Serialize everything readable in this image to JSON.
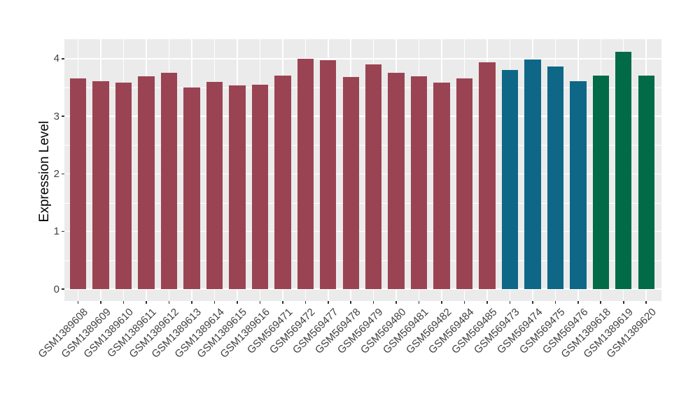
{
  "chart_data": {
    "type": "bar",
    "title": "",
    "xlabel": "",
    "ylabel": "Expression Level",
    "ylim": [
      0,
      4.33
    ],
    "yticks": [
      "0",
      "1",
      "2",
      "3",
      "4"
    ],
    "grid": true,
    "legend_position": "none",
    "panel_background": "#EBEBEB",
    "grid_color": "#FFFFFF",
    "outer_background": "#FFFFFF",
    "tick_color": "#333333",
    "axis_text_color": "#404040",
    "axis_title_color": "#000000",
    "palette": {
      "group1": "#9A4453",
      "group2": "#0E6787",
      "group3": "#006B46"
    },
    "bars": [
      {
        "label": "GSM1389608",
        "value": 3.66,
        "color": "#9A4453"
      },
      {
        "label": "GSM1389609",
        "value": 3.61,
        "color": "#9A4453"
      },
      {
        "label": "GSM1389610",
        "value": 3.59,
        "color": "#9A4453"
      },
      {
        "label": "GSM1389611",
        "value": 3.69,
        "color": "#9A4453"
      },
      {
        "label": "GSM1389612",
        "value": 3.75,
        "color": "#9A4453"
      },
      {
        "label": "GSM1389613",
        "value": 3.5,
        "color": "#9A4453"
      },
      {
        "label": "GSM1389614",
        "value": 3.6,
        "color": "#9A4453"
      },
      {
        "label": "GSM1389615",
        "value": 3.54,
        "color": "#9A4453"
      },
      {
        "label": "GSM1389616",
        "value": 3.55,
        "color": "#9A4453"
      },
      {
        "label": "GSM569471",
        "value": 3.7,
        "color": "#9A4453"
      },
      {
        "label": "GSM569472",
        "value": 4.0,
        "color": "#9A4453"
      },
      {
        "label": "GSM569477",
        "value": 3.97,
        "color": "#9A4453"
      },
      {
        "label": "GSM569478",
        "value": 3.68,
        "color": "#9A4453"
      },
      {
        "label": "GSM569479",
        "value": 3.9,
        "color": "#9A4453"
      },
      {
        "label": "GSM569480",
        "value": 3.76,
        "color": "#9A4453"
      },
      {
        "label": "GSM569481",
        "value": 3.69,
        "color": "#9A4453"
      },
      {
        "label": "GSM569482",
        "value": 3.58,
        "color": "#9A4453"
      },
      {
        "label": "GSM569484",
        "value": 3.66,
        "color": "#9A4453"
      },
      {
        "label": "GSM569485",
        "value": 3.94,
        "color": "#9A4453"
      },
      {
        "label": "GSM569473",
        "value": 3.8,
        "color": "#0E6787"
      },
      {
        "label": "GSM569474",
        "value": 3.99,
        "color": "#0E6787"
      },
      {
        "label": "GSM569475",
        "value": 3.86,
        "color": "#0E6787"
      },
      {
        "label": "GSM569476",
        "value": 3.61,
        "color": "#0E6787"
      },
      {
        "label": "GSM1389618",
        "value": 3.7,
        "color": "#006B46"
      },
      {
        "label": "GSM1389619",
        "value": 4.12,
        "color": "#006B46"
      },
      {
        "label": "GSM1389620",
        "value": 3.71,
        "color": "#006B46"
      }
    ]
  }
}
